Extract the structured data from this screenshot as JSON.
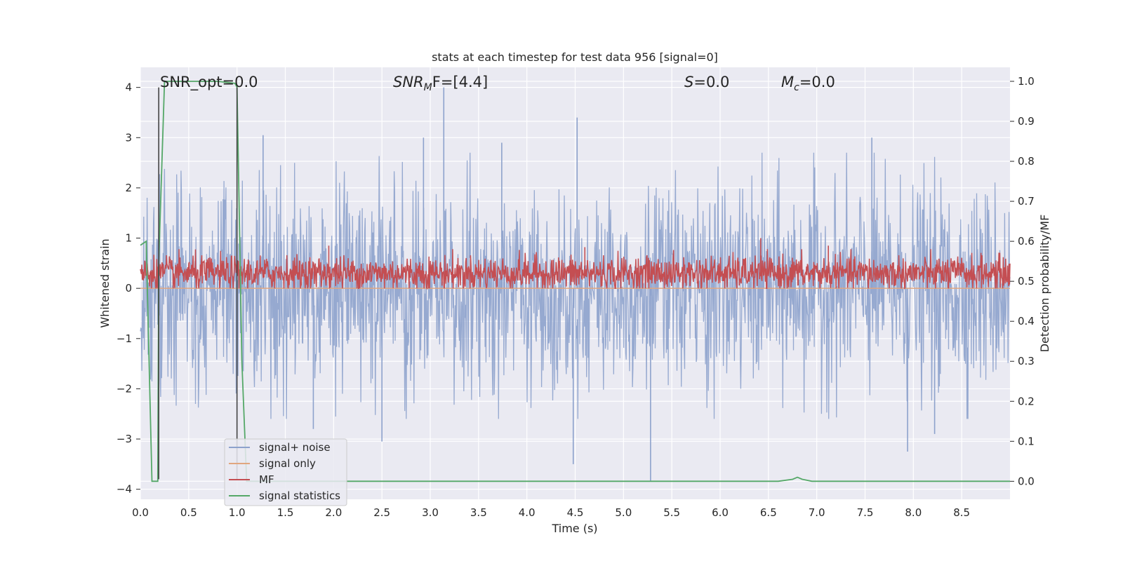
{
  "chart_data": {
    "type": "line",
    "title": "stats at each timestep for test data 956 [signal=0]",
    "xlabel": "Time (s)",
    "ylabel": "Whitened strain",
    "y2label": "Detection probability/MF",
    "xlim": [
      0.0,
      9.0
    ],
    "ylim": [
      -4.2,
      4.4
    ],
    "y2lim": [
      -0.045,
      1.035
    ],
    "xticks": [
      "0.0",
      "0.5",
      "1.0",
      "1.5",
      "2.0",
      "2.5",
      "3.0",
      "3.5",
      "4.0",
      "4.5",
      "5.0",
      "5.5",
      "6.0",
      "6.5",
      "7.0",
      "7.5",
      "8.0",
      "8.5"
    ],
    "yticks": [
      "4",
      "3",
      "2",
      "1",
      "0",
      "−1",
      "−2",
      "−3",
      "−4"
    ],
    "y2ticks": [
      "1.0",
      "0.9",
      "0.8",
      "0.7",
      "0.6",
      "0.5",
      "0.4",
      "0.3",
      "0.2",
      "0.1",
      "0.0"
    ],
    "grid": true,
    "legend_position": "lower-left",
    "annotations": {
      "snr_opt": "SNR_opt=0.0",
      "snr_mf_main": "SNR",
      "snr_mf_sub": "M",
      "snr_mf_rest": "F=[4.4]",
      "s_main": "S",
      "s_rest": "=0.0",
      "mc_main": "M",
      "mc_sub": "c",
      "mc_rest": "=0.0"
    },
    "window_markers_x": [
      0.19,
      1.0
    ],
    "series": [
      {
        "name": "signal+ noise",
        "color": "#8da2cc",
        "axis": "left",
        "kind": "noise",
        "amplitude_std": 1.0,
        "spikes": [
          {
            "x": 3.14,
            "y": 4.0
          },
          {
            "x": 4.52,
            "y": 3.4
          },
          {
            "x": 1.27,
            "y": 3.05
          },
          {
            "x": 2.93,
            "y": 3.0
          },
          {
            "x": 3.74,
            "y": 2.9
          },
          {
            "x": 7.57,
            "y": 3.0
          },
          {
            "x": 5.28,
            "y": -3.85
          },
          {
            "x": 4.48,
            "y": -3.5
          },
          {
            "x": 2.5,
            "y": -3.05
          },
          {
            "x": 8.22,
            "y": -2.9
          },
          {
            "x": 7.94,
            "y": -3.25
          },
          {
            "x": 1.79,
            "y": -2.8
          }
        ]
      },
      {
        "name": "signal only",
        "color": "#e1a67f",
        "axis": "left",
        "kind": "flat",
        "value": 0.0
      },
      {
        "name": "MF",
        "color": "#c44e52",
        "axis": "left",
        "kind": "mf",
        "mean": 0.3,
        "spikes": [
          {
            "x": 6.42,
            "y": 1.0
          },
          {
            "x": 7.12,
            "y": 0.85
          },
          {
            "x": 4.6,
            "y": 0.82
          },
          {
            "x": 1.95,
            "y": 0.85
          }
        ]
      },
      {
        "name": "signal statistics",
        "color": "#55a868",
        "axis": "right",
        "kind": "points",
        "x": [
          0.0,
          0.06,
          0.12,
          0.18,
          0.19,
          0.25,
          0.3,
          0.5,
          0.8,
          0.98,
          1.0,
          1.05,
          1.1,
          1.2,
          6.6,
          6.75,
          6.8,
          6.85,
          6.95,
          9.0
        ],
        "y": [
          0.59,
          0.6,
          0.0,
          0.0,
          0.55,
          1.0,
          1.0,
          1.0,
          1.0,
          0.995,
          0.985,
          0.3,
          0.0,
          0.0,
          0.0,
          0.005,
          0.01,
          0.005,
          0.0,
          0.0
        ]
      }
    ]
  }
}
